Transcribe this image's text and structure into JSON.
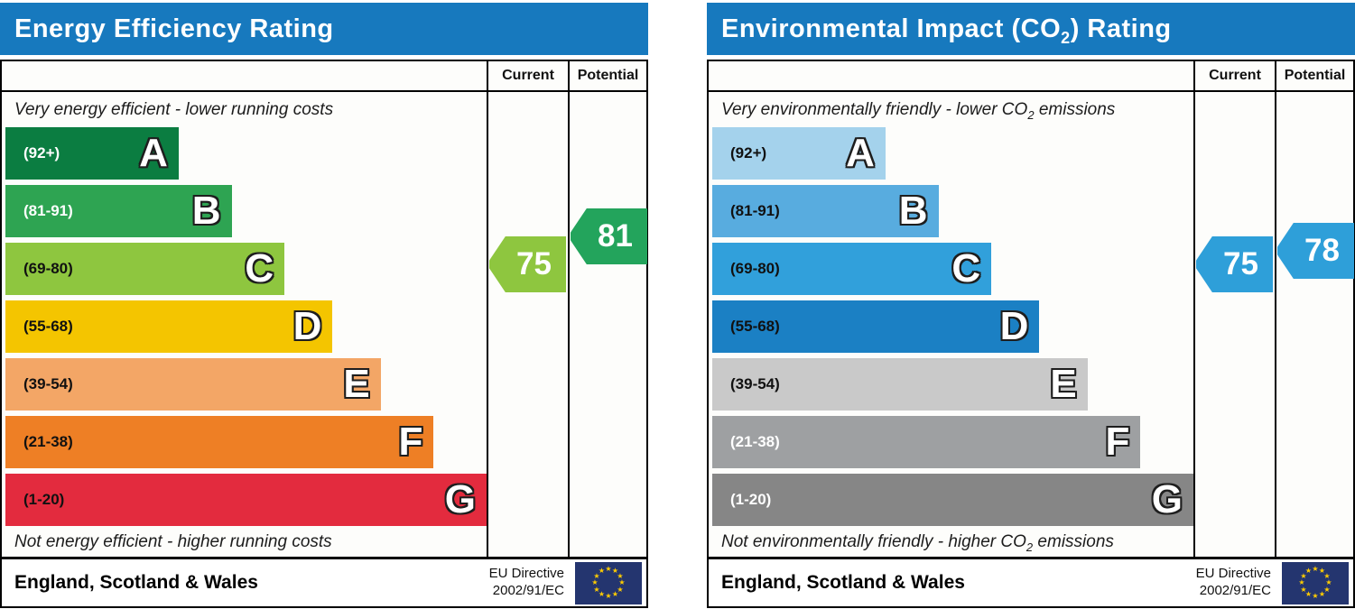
{
  "eu_flag": {
    "bg_color": "#24356F",
    "star_color": "#FFCC00"
  },
  "charts": [
    {
      "header": {
        "title_pre": "Energy Efficiency Rating",
        "title_sub": "",
        "title_post": "",
        "bg_color": "#1779BE"
      },
      "columns": {
        "current_label": "Current",
        "potential_label": "Potential"
      },
      "captions": {
        "top_pre": "Very energy efficient - lower running costs",
        "top_sub": "",
        "top_post": "",
        "bottom_pre": "Not energy efficient - higher running costs",
        "bottom_sub": "",
        "bottom_post": ""
      },
      "bands": [
        {
          "letter": "A",
          "range": "(92+)",
          "color": "#0B7D41",
          "width": "36%",
          "text_color": "#FFFFFF"
        },
        {
          "letter": "B",
          "range": "(81-91)",
          "color": "#2EA452",
          "width": "47%",
          "text_color": "#FFFFFF"
        },
        {
          "letter": "C",
          "range": "(69-80)",
          "color": "#8EC63F",
          "width": "58%",
          "text_color": "#111111"
        },
        {
          "letter": "D",
          "range": "(55-68)",
          "color": "#F4C500",
          "width": "68%",
          "text_color": "#111111"
        },
        {
          "letter": "E",
          "range": "(39-54)",
          "color": "#F3A666",
          "width": "78%",
          "text_color": "#111111"
        },
        {
          "letter": "F",
          "range": "(21-38)",
          "color": "#EE7F25",
          "width": "89%",
          "text_color": "#111111"
        },
        {
          "letter": "G",
          "range": "(1-20)",
          "color": "#E32B3E",
          "width": "100%",
          "text_color": "#111111"
        }
      ],
      "current": {
        "value": "75",
        "color": "#8EC63F"
      },
      "potential": {
        "value": "81",
        "color": "#23A45C"
      },
      "footer": {
        "region": "England, Scotland & Wales",
        "directive_line1": "EU Directive",
        "directive_line2": "2002/91/EC"
      }
    },
    {
      "header": {
        "title_pre": "Environmental Impact (CO",
        "title_sub": "2",
        "title_post": ") Rating",
        "bg_color": "#1779BE"
      },
      "columns": {
        "current_label": "Current",
        "potential_label": "Potential"
      },
      "captions": {
        "top_pre": "Very environmentally friendly - lower CO",
        "top_sub": "2",
        "top_post": " emissions",
        "bottom_pre": "Not environmentally friendly - higher CO",
        "bottom_sub": "2",
        "bottom_post": " emissions"
      },
      "bands": [
        {
          "letter": "A",
          "range": "(92+)",
          "color": "#A4D2EC",
          "width": "36%",
          "text_color": "#111111"
        },
        {
          "letter": "B",
          "range": "(81-91)",
          "color": "#58ACDF",
          "width": "47%",
          "text_color": "#111111"
        },
        {
          "letter": "C",
          "range": "(69-80)",
          "color": "#31A0DB",
          "width": "58%",
          "text_color": "#111111"
        },
        {
          "letter": "D",
          "range": "(55-68)",
          "color": "#1B80C4",
          "width": "68%",
          "text_color": "#111111"
        },
        {
          "letter": "E",
          "range": "(39-54)",
          "color": "#C9C9C9",
          "width": "78%",
          "text_color": "#111111"
        },
        {
          "letter": "F",
          "range": "(21-38)",
          "color": "#9EA0A2",
          "width": "89%",
          "text_color": "#FFFFFF"
        },
        {
          "letter": "G",
          "range": "(1-20)",
          "color": "#868686",
          "width": "100%",
          "text_color": "#FFFFFF"
        }
      ],
      "current": {
        "value": "75",
        "color": "#2E9FD9"
      },
      "potential": {
        "value": "78",
        "color": "#2E9FD9"
      },
      "footer": {
        "region": "England, Scotland & Wales",
        "directive_line1": "EU Directive",
        "directive_line2": "2002/91/EC"
      }
    }
  ],
  "chart_data": [
    {
      "type": "bar",
      "title": "Energy Efficiency Rating",
      "categories": [
        "A",
        "B",
        "C",
        "D",
        "E",
        "F",
        "G"
      ],
      "band_score_ranges": [
        "92+",
        "81-91",
        "69-80",
        "55-68",
        "39-54",
        "21-38",
        "1-20"
      ],
      "bar_lengths_pct": [
        36,
        47,
        58,
        68,
        78,
        89,
        100
      ],
      "current": 75,
      "potential": 81,
      "current_band": "C",
      "potential_band": "B",
      "top_annotation": "Very energy efficient - lower running costs",
      "bottom_annotation": "Not energy efficient - higher running costs",
      "footer_region": "England, Scotland & Wales",
      "footer_directive": "EU Directive 2002/91/EC"
    },
    {
      "type": "bar",
      "title": "Environmental Impact (CO2) Rating",
      "categories": [
        "A",
        "B",
        "C",
        "D",
        "E",
        "F",
        "G"
      ],
      "band_score_ranges": [
        "92+",
        "81-91",
        "69-80",
        "55-68",
        "39-54",
        "21-38",
        "1-20"
      ],
      "bar_lengths_pct": [
        36,
        47,
        58,
        68,
        78,
        89,
        100
      ],
      "current": 75,
      "potential": 78,
      "current_band": "C",
      "potential_band": "C",
      "top_annotation": "Very environmentally friendly - lower CO2 emissions",
      "bottom_annotation": "Not environmentally friendly - higher CO2 emissions",
      "footer_region": "England, Scotland & Wales",
      "footer_directive": "EU Directive 2002/91/EC"
    }
  ]
}
